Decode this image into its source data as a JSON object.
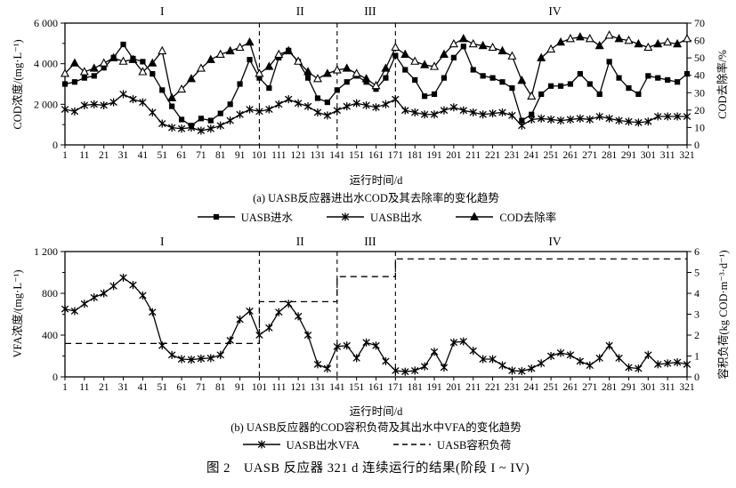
{
  "figure_caption": "图 2　UASB 反应器 321 d 连续运行的结果(阶段 I ~ IV)",
  "panel_a": {
    "y_left_title": "COD浓度/(mg·L⁻¹)",
    "y_right_title": "COD去除率/%",
    "x_title": "运行时间/d",
    "caption": "(a) UASB反应器进出水COD及其去除率的变化趋势",
    "legend": [
      {
        "label": "UASB进水",
        "marker": "square"
      },
      {
        "label": "UASB出水",
        "marker": "star"
      },
      {
        "label": "COD去除率",
        "marker": "triangle"
      }
    ]
  },
  "panel_b": {
    "y_left_title": "VFA浓度/(mg·L⁻¹)",
    "y_right_title": "容积负荷(kg COD·m⁻³·d⁻¹)",
    "x_title": "运行时间/d",
    "caption": "(b) UASB反应器的COD容积负荷及其出水中VFA的变化趋势",
    "legend": [
      {
        "label": "UASB出水VFA",
        "marker": "star"
      },
      {
        "label": "UASB容积负荷",
        "marker": "dashed"
      }
    ]
  },
  "chart_data": [
    {
      "type": "line",
      "panel": "a",
      "title": "(a) UASB反应器进出水COD及其去除率的变化趋势",
      "xlabel": "运行时间/d",
      "ylabel_left": "COD浓度/(mg·L⁻¹)",
      "ylabel_right": "COD去除率/%",
      "xlim": [
        1,
        321
      ],
      "x_ticks": [
        1,
        11,
        21,
        31,
        41,
        51,
        61,
        71,
        81,
        91,
        101,
        111,
        121,
        131,
        141,
        151,
        161,
        171,
        181,
        191,
        201,
        211,
        221,
        231,
        241,
        251,
        261,
        271,
        281,
        291,
        301,
        311,
        321
      ],
      "ylim_left": [
        0,
        6000
      ],
      "y_ticks_left": [
        0,
        2000,
        4000,
        6000
      ],
      "y_tick_labels_left": [
        "0",
        "2 000",
        "4 000",
        "6 000"
      ],
      "y_minor_left": [
        1000,
        3000,
        5000
      ],
      "ylim_right": [
        0,
        70
      ],
      "y_ticks_right": [
        0,
        10,
        20,
        30,
        40,
        50,
        60,
        70
      ],
      "phase_lines": [
        101,
        141,
        171
      ],
      "phases": [
        {
          "label": "I",
          "center_day": 51
        },
        {
          "label": "II",
          "center_day": 122
        },
        {
          "label": "III",
          "center_day": 158
        },
        {
          "label": "IV",
          "center_day": 253
        }
      ],
      "x": [
        1,
        6,
        11,
        16,
        21,
        26,
        31,
        36,
        41,
        46,
        51,
        56,
        61,
        66,
        71,
        76,
        81,
        86,
        91,
        96,
        101,
        106,
        111,
        116,
        121,
        126,
        131,
        136,
        141,
        146,
        151,
        156,
        161,
        166,
        171,
        176,
        181,
        186,
        191,
        196,
        201,
        206,
        211,
        216,
        221,
        226,
        231,
        236,
        241,
        246,
        251,
        256,
        261,
        266,
        271,
        276,
        281,
        286,
        291,
        296,
        301,
        306,
        311,
        316,
        321
      ],
      "series": [
        {
          "name": "UASB进水",
          "axis": "left",
          "marker": "square",
          "values": [
            3000,
            3100,
            3300,
            3400,
            3800,
            4300,
            4950,
            4250,
            4100,
            3500,
            2700,
            1900,
            1250,
            950,
            1300,
            1200,
            1550,
            2000,
            3000,
            4200,
            3300,
            2800,
            4300,
            4650,
            4100,
            3300,
            2300,
            2100,
            2700,
            3100,
            3400,
            3100,
            2750,
            3300,
            4400,
            3700,
            3200,
            2400,
            2500,
            3300,
            4300,
            4850,
            3700,
            3400,
            3300,
            3100,
            2800,
            1200,
            1500,
            2500,
            2900,
            2900,
            3000,
            3500,
            3000,
            2500,
            4100,
            3300,
            2800,
            2500,
            3400,
            3300,
            3200,
            3100,
            3500
          ]
        },
        {
          "name": "UASB出水",
          "axis": "left",
          "marker": "star",
          "values": [
            1750,
            1650,
            1950,
            2000,
            1950,
            2100,
            2500,
            2250,
            2100,
            1600,
            1050,
            850,
            800,
            850,
            700,
            800,
            950,
            1200,
            1500,
            1750,
            1650,
            1750,
            2000,
            2250,
            2050,
            1900,
            1600,
            1450,
            1700,
            1900,
            2050,
            1950,
            1850,
            2000,
            2250,
            1700,
            1600,
            1500,
            1500,
            1700,
            1850,
            1700,
            1600,
            1500,
            1550,
            1600,
            1450,
            950,
            1250,
            1300,
            1250,
            1200,
            1250,
            1300,
            1250,
            1400,
            1300,
            1200,
            1150,
            1100,
            1150,
            1400,
            1400,
            1400,
            1400
          ]
        },
        {
          "name": "COD去除率",
          "axis": "right",
          "marker": "triangle",
          "values": [
            41,
            47,
            42,
            44,
            47,
            50,
            48,
            49,
            42,
            47,
            54,
            27,
            32,
            38,
            44,
            49,
            52,
            54,
            56,
            59,
            41,
            45,
            52,
            54,
            48,
            42,
            38,
            41,
            43,
            44,
            41,
            38,
            34,
            44,
            56,
            52,
            48,
            46,
            45,
            52,
            58,
            61,
            58,
            57,
            56,
            54,
            51,
            37,
            28,
            50,
            55,
            59,
            61,
            62,
            61,
            57,
            63,
            61,
            60,
            58,
            56,
            58,
            59,
            58,
            61
          ]
        }
      ]
    },
    {
      "type": "line",
      "panel": "b",
      "title": "(b) UASB反应器的COD容积负荷及其出水中VFA的变化趋势",
      "xlabel": "运行时间/d",
      "ylabel_left": "VFA浓度/(mg·L⁻¹)",
      "ylabel_right": "容积负荷(kg COD·m⁻³·d⁻¹)",
      "xlim": [
        1,
        321
      ],
      "x_ticks": [
        1,
        11,
        21,
        31,
        41,
        51,
        61,
        71,
        81,
        91,
        101,
        111,
        121,
        131,
        141,
        151,
        161,
        171,
        181,
        191,
        201,
        211,
        221,
        231,
        241,
        251,
        261,
        271,
        281,
        291,
        301,
        311,
        321
      ],
      "ylim_left": [
        0,
        1200
      ],
      "y_ticks_left": [
        0,
        400,
        800,
        1200
      ],
      "y_tick_labels_left": [
        "0",
        "400",
        "800",
        "1 200"
      ],
      "y_minor_left": [
        200,
        600,
        1000
      ],
      "ylim_right": [
        0,
        6
      ],
      "y_ticks_right": [
        0,
        1,
        2,
        3,
        4,
        5,
        6
      ],
      "phase_lines": [
        101,
        141,
        171
      ],
      "phases": [
        {
          "label": "I",
          "center_day": 51
        },
        {
          "label": "II",
          "center_day": 122
        },
        {
          "label": "III",
          "center_day": 158
        },
        {
          "label": "IV",
          "center_day": 253
        }
      ],
      "x": [
        1,
        6,
        11,
        16,
        21,
        26,
        31,
        36,
        41,
        46,
        51,
        56,
        61,
        66,
        71,
        76,
        81,
        86,
        91,
        96,
        101,
        106,
        111,
        116,
        121,
        126,
        131,
        136,
        141,
        146,
        151,
        156,
        161,
        166,
        171,
        176,
        181,
        186,
        191,
        196,
        201,
        206,
        211,
        216,
        221,
        226,
        231,
        236,
        241,
        246,
        251,
        256,
        261,
        266,
        271,
        276,
        281,
        286,
        291,
        296,
        301,
        306,
        311,
        316,
        321
      ],
      "series": [
        {
          "name": "UASB出水VFA",
          "axis": "left",
          "marker": "star",
          "values": [
            650,
            630,
            700,
            760,
            800,
            870,
            950,
            880,
            780,
            620,
            300,
            210,
            170,
            165,
            175,
            180,
            210,
            350,
            550,
            630,
            400,
            470,
            620,
            700,
            580,
            400,
            120,
            80,
            290,
            300,
            180,
            330,
            300,
            150,
            60,
            50,
            60,
            100,
            240,
            90,
            330,
            340,
            250,
            170,
            170,
            110,
            60,
            55,
            80,
            130,
            200,
            230,
            210,
            150,
            110,
            180,
            300,
            180,
            90,
            80,
            210,
            120,
            130,
            140,
            120
          ]
        }
      ],
      "step_series": {
        "name": "UASB容积负荷",
        "axis": "right",
        "line_style": "dashed",
        "levels": [
          {
            "from_day": 1,
            "to_day": 101,
            "value": 1.6
          },
          {
            "from_day": 101,
            "to_day": 141,
            "value": 3.6
          },
          {
            "from_day": 141,
            "to_day": 171,
            "value": 4.8
          },
          {
            "from_day": 171,
            "to_day": 321,
            "value": 5.65
          }
        ]
      }
    }
  ]
}
